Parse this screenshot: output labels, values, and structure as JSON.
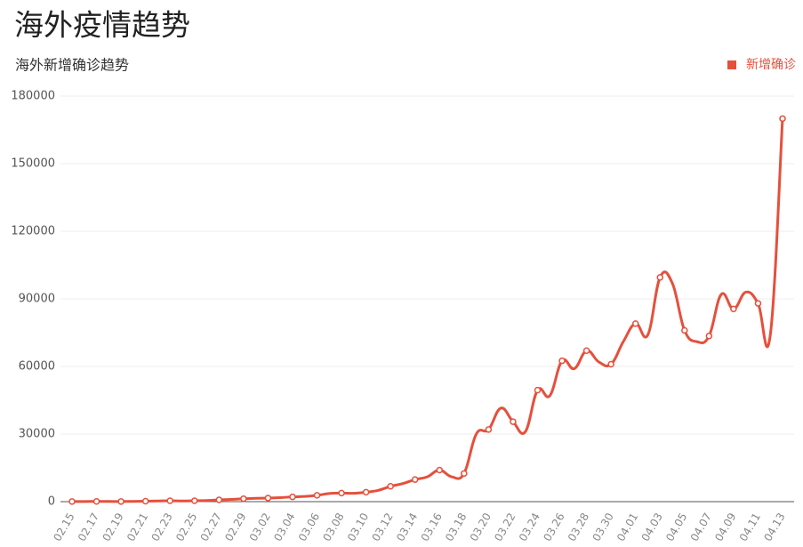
{
  "title": "海外疫情趋势",
  "chart_data": {
    "type": "line",
    "subtitle": "海外新增确诊趋势",
    "categories": [
      "02.15",
      null,
      "02.17",
      null,
      "02.19",
      null,
      "02.21",
      null,
      "02.23",
      null,
      "02.25",
      null,
      "02.27",
      null,
      "02.29",
      null,
      "03.02",
      null,
      "03.04",
      null,
      "03.06",
      null,
      "03.08",
      null,
      "03.10",
      null,
      "03.12",
      null,
      "03.14",
      null,
      "03.16",
      null,
      "03.18",
      null,
      "03.20",
      null,
      "03.22",
      null,
      "03.24",
      null,
      "03.26",
      null,
      "03.28",
      null,
      "03.30",
      null,
      "04.01",
      null,
      "04.03",
      null,
      "04.05",
      null,
      "04.07",
      null,
      "04.09",
      null,
      "04.11",
      null,
      "04.13"
    ],
    "series": [
      {
        "name": "新增确诊",
        "color": "#e5503c",
        "values": [
          50,
          60,
          90,
          80,
          70,
          100,
          200,
          300,
          400,
          300,
          400,
          500,
          800,
          1000,
          1300,
          1500,
          1600,
          1800,
          2100,
          2300,
          2800,
          3600,
          3800,
          3700,
          4200,
          5000,
          6800,
          8000,
          9800,
          11000,
          14000,
          11000,
          12500,
          30000,
          32000,
          41500,
          35500,
          31000,
          49500,
          47000,
          62500,
          59000,
          67000,
          62000,
          61000,
          71000,
          79000,
          74000,
          99500,
          97000,
          76000,
          71000,
          73500,
          92000,
          85500,
          93000,
          88000,
          74000,
          170000
        ]
      }
    ],
    "ylim": [
      0,
      180000
    ],
    "yticks": [
      0,
      30000,
      60000,
      90000,
      120000,
      150000,
      180000
    ],
    "grid": true,
    "legend": "top-right"
  }
}
